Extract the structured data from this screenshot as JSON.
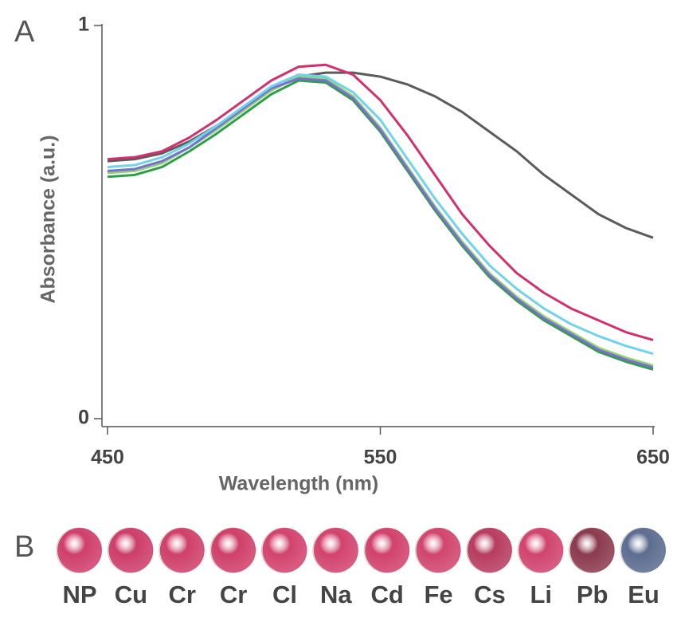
{
  "panel_a_label": "A",
  "chart_data": {
    "type": "line",
    "xlabel": "Wavelength (nm)",
    "ylabel": "Absorbance (a.u.)",
    "x": [
      450,
      460,
      470,
      480,
      490,
      500,
      510,
      520,
      530,
      540,
      550,
      560,
      570,
      580,
      590,
      600,
      610,
      620,
      630,
      640,
      650
    ],
    "xlim": [
      450,
      650
    ],
    "xticks": [
      450,
      550,
      650
    ],
    "ylim": [
      0,
      1
    ],
    "yticks": [
      0,
      1
    ],
    "series": [
      {
        "color": "#5b5b5b",
        "values": [
          0.655,
          0.66,
          0.675,
          0.705,
          0.745,
          0.79,
          0.835,
          0.87,
          0.88,
          0.88,
          0.87,
          0.85,
          0.82,
          0.78,
          0.73,
          0.68,
          0.62,
          0.57,
          0.52,
          0.485,
          0.46
        ]
      },
      {
        "color": "#2e9e4a",
        "values": [
          0.615,
          0.62,
          0.64,
          0.68,
          0.725,
          0.775,
          0.825,
          0.86,
          0.855,
          0.81,
          0.73,
          0.63,
          0.53,
          0.44,
          0.36,
          0.3,
          0.25,
          0.21,
          0.17,
          0.145,
          0.125
        ]
      },
      {
        "color": "#8ed36b",
        "values": [
          0.625,
          0.63,
          0.65,
          0.69,
          0.735,
          0.785,
          0.835,
          0.87,
          0.865,
          0.82,
          0.74,
          0.64,
          0.54,
          0.45,
          0.37,
          0.31,
          0.26,
          0.22,
          0.18,
          0.155,
          0.135
        ]
      },
      {
        "color": "#7a6fd0",
        "values": [
          0.63,
          0.635,
          0.655,
          0.69,
          0.74,
          0.79,
          0.84,
          0.865,
          0.86,
          0.815,
          0.735,
          0.635,
          0.535,
          0.445,
          0.365,
          0.305,
          0.255,
          0.215,
          0.175,
          0.15,
          0.13
        ]
      },
      {
        "color": "#6fd3ec",
        "values": [
          0.64,
          0.645,
          0.665,
          0.7,
          0.745,
          0.795,
          0.845,
          0.875,
          0.87,
          0.83,
          0.76,
          0.66,
          0.56,
          0.47,
          0.39,
          0.33,
          0.28,
          0.24,
          0.21,
          0.185,
          0.165
        ]
      },
      {
        "color": "#d4306e",
        "values": [
          0.66,
          0.665,
          0.68,
          0.715,
          0.76,
          0.81,
          0.86,
          0.895,
          0.9,
          0.875,
          0.81,
          0.72,
          0.62,
          0.52,
          0.44,
          0.37,
          0.32,
          0.28,
          0.25,
          0.22,
          0.2
        ]
      }
    ]
  },
  "panel_b": {
    "label": "B",
    "items": [
      {
        "label": "NP",
        "color": "#cf3f6c"
      },
      {
        "label": "Cu",
        "color": "#cd3e6a"
      },
      {
        "label": "Cr",
        "color": "#cf4069"
      },
      {
        "label": "Cr",
        "color": "#cf4069"
      },
      {
        "label": "Cl",
        "color": "#d2436e"
      },
      {
        "label": "Na",
        "color": "#d2436e"
      },
      {
        "label": "Cd",
        "color": "#d1426c"
      },
      {
        "label": "Fe",
        "color": "#d0456e"
      },
      {
        "label": "Cs",
        "color": "#b73c60"
      },
      {
        "label": "Li",
        "color": "#d0446e"
      },
      {
        "label": "Pb",
        "color": "#8b3b4e"
      },
      {
        "label": "Eu",
        "color": "#5d6d90"
      }
    ]
  }
}
